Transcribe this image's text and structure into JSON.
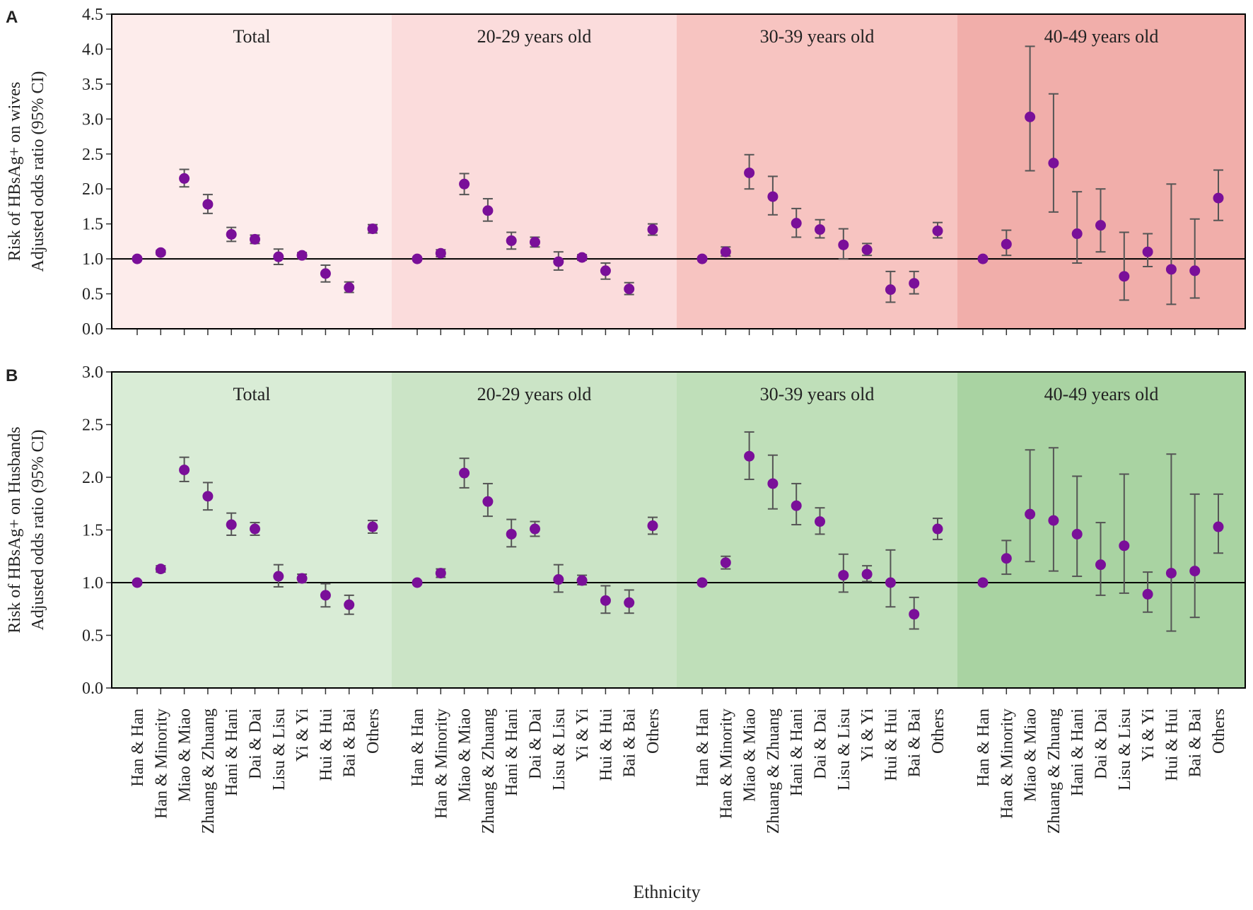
{
  "figure": {
    "xlabel": "Ethnicity"
  },
  "groups": [
    "Total",
    "20-29 years old",
    "30-39 years old",
    "40-49 years old"
  ],
  "categories": [
    "Han & Han",
    "Han & Minority",
    "Miao & Miao",
    "Zhuang & Zhuang",
    "Hani & Hani",
    "Dai & Dai",
    "Lisu & Lisu",
    "Yi & Yi",
    "Hui & Hui",
    "Bai & Bai",
    "Others"
  ],
  "colors": {
    "marker": "#7a0f99",
    "errorbar": "#555555",
    "referenceLine": "#000000",
    "wivesShades": [
      "#fdeceb",
      "#fbdcdc",
      "#f7c4c1",
      "#f1aeaa"
    ],
    "husbandsShades": [
      "#d9ecd6",
      "#cbe4c6",
      "#bfdfb9",
      "#a9d3a2"
    ]
  },
  "chart_data": [
    {
      "type": "scatter",
      "panel": "A",
      "ylabel": [
        "Risk of HBsAg+ on wives",
        "Adjusted odds ratio (95% CI)"
      ],
      "ylim": [
        0,
        4.5
      ],
      "yticks": [
        "0.0",
        "0.5",
        "1.0",
        "1.5",
        "2.0",
        "2.5",
        "3.0",
        "3.5",
        "4.0",
        "4.5"
      ],
      "reference_line": 1.0,
      "series": [
        {
          "name": "Total",
          "values": [
            1.0,
            1.09,
            2.15,
            1.78,
            1.35,
            1.28,
            1.03,
            1.05,
            0.79,
            0.59,
            1.43
          ],
          "lower": [
            1.0,
            1.06,
            2.03,
            1.65,
            1.25,
            1.22,
            0.92,
            1.01,
            0.67,
            0.52,
            1.37
          ],
          "upper": [
            1.0,
            1.12,
            2.28,
            1.92,
            1.45,
            1.34,
            1.14,
            1.09,
            0.91,
            0.67,
            1.49
          ]
        },
        {
          "name": "20-29 years old",
          "values": [
            1.0,
            1.08,
            2.07,
            1.69,
            1.26,
            1.24,
            0.96,
            1.02,
            0.83,
            0.57,
            1.42
          ],
          "lower": [
            1.0,
            1.03,
            1.92,
            1.54,
            1.14,
            1.17,
            0.84,
            0.98,
            0.71,
            0.49,
            1.34
          ],
          "upper": [
            1.0,
            1.13,
            2.22,
            1.86,
            1.38,
            1.31,
            1.1,
            1.06,
            0.94,
            0.66,
            1.5
          ]
        },
        {
          "name": "30-39 years old",
          "values": [
            1.0,
            1.1,
            2.23,
            1.89,
            1.51,
            1.42,
            1.2,
            1.13,
            0.56,
            0.65,
            1.4
          ],
          "lower": [
            1.0,
            1.04,
            2.0,
            1.63,
            1.31,
            1.3,
            1.0,
            1.05,
            0.38,
            0.5,
            1.3
          ],
          "upper": [
            1.0,
            1.17,
            2.49,
            2.18,
            1.72,
            1.56,
            1.43,
            1.22,
            0.82,
            0.82,
            1.52
          ]
        },
        {
          "name": "40-49 years old",
          "values": [
            1.0,
            1.21,
            3.03,
            2.37,
            1.36,
            1.48,
            0.75,
            1.1,
            0.85,
            0.83,
            1.87
          ],
          "lower": [
            1.0,
            1.05,
            2.26,
            1.67,
            0.94,
            1.1,
            0.41,
            0.89,
            0.35,
            0.44,
            1.55
          ],
          "upper": [
            1.0,
            1.41,
            4.04,
            3.36,
            1.96,
            2.0,
            1.38,
            1.36,
            2.07,
            1.57,
            2.27
          ]
        }
      ]
    },
    {
      "type": "scatter",
      "panel": "B",
      "ylabel": [
        "Risk of HBsAg+ on Husbands",
        "Adjusted odds ratio (95% CI)"
      ],
      "ylim": [
        0,
        3.0
      ],
      "yticks": [
        "0.0",
        "0.5",
        "1.0",
        "1.5",
        "2.0",
        "2.5",
        "3.0"
      ],
      "reference_line": 1.0,
      "series": [
        {
          "name": "Total",
          "values": [
            1.0,
            1.13,
            2.07,
            1.82,
            1.55,
            1.51,
            1.06,
            1.04,
            0.88,
            0.79,
            1.53
          ],
          "lower": [
            1.0,
            1.1,
            1.96,
            1.69,
            1.45,
            1.45,
            0.96,
            1.0,
            0.77,
            0.7,
            1.47
          ],
          "upper": [
            1.0,
            1.16,
            2.19,
            1.95,
            1.66,
            1.57,
            1.17,
            1.08,
            0.99,
            0.88,
            1.59
          ]
        },
        {
          "name": "20-29 years old",
          "values": [
            1.0,
            1.09,
            2.04,
            1.77,
            1.46,
            1.51,
            1.03,
            1.02,
            0.83,
            0.81,
            1.54
          ],
          "lower": [
            1.0,
            1.05,
            1.9,
            1.63,
            1.34,
            1.44,
            0.91,
            0.98,
            0.71,
            0.71,
            1.46
          ],
          "upper": [
            1.0,
            1.13,
            2.18,
            1.94,
            1.6,
            1.58,
            1.17,
            1.07,
            0.97,
            0.93,
            1.62
          ]
        },
        {
          "name": "30-39 years old",
          "values": [
            1.0,
            1.19,
            2.2,
            1.94,
            1.73,
            1.58,
            1.07,
            1.08,
            1.0,
            0.7,
            1.51
          ],
          "lower": [
            1.0,
            1.13,
            1.98,
            1.7,
            1.55,
            1.46,
            0.91,
            1.01,
            0.77,
            0.56,
            1.41
          ],
          "upper": [
            1.0,
            1.25,
            2.43,
            2.21,
            1.94,
            1.71,
            1.27,
            1.16,
            1.31,
            0.86,
            1.61
          ]
        },
        {
          "name": "40-49 years old",
          "values": [
            1.0,
            1.23,
            1.65,
            1.59,
            1.46,
            1.17,
            1.35,
            0.89,
            1.09,
            1.11,
            1.53
          ],
          "lower": [
            1.0,
            1.08,
            1.2,
            1.11,
            1.06,
            0.88,
            0.9,
            0.72,
            0.54,
            0.67,
            1.28
          ],
          "upper": [
            1.0,
            1.4,
            2.26,
            2.28,
            2.01,
            1.57,
            2.03,
            1.1,
            2.22,
            1.84,
            1.84
          ]
        }
      ]
    }
  ]
}
